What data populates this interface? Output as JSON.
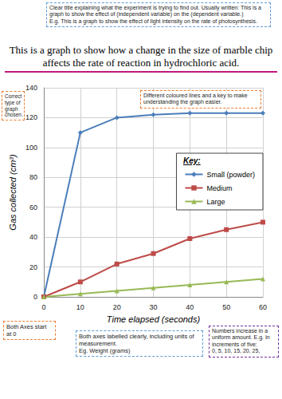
{
  "chart_data": {
    "type": "line",
    "title": "This is a graph to show how a change in the size of marble chip affects the rate of reaction in hydrochloric acid.",
    "x_label": "Time elapsed (seconds)",
    "y_label": "Gas collected (cm³)",
    "legend_title": "Key:",
    "x": [
      0,
      10,
      20,
      30,
      40,
      50,
      60
    ],
    "series": [
      {
        "name": "Small (powder)",
        "color": "#4a7ebb",
        "marker": "diamond",
        "values": [
          0,
          110,
          120,
          122,
          123,
          123,
          123
        ]
      },
      {
        "name": "Medium",
        "color": "#be4b48",
        "marker": "square",
        "values": [
          0,
          10,
          22,
          29,
          39,
          45,
          50
        ]
      },
      {
        "name": "Large",
        "color": "#98b954",
        "marker": "triangle",
        "values": [
          0,
          2,
          4,
          6,
          8,
          10,
          12
        ]
      }
    ],
    "xlim": [
      0,
      60
    ],
    "ylim": [
      0,
      140
    ],
    "xticks": [
      0,
      10,
      20,
      30,
      40,
      50,
      60
    ],
    "yticks": [
      0,
      20,
      40,
      60,
      80,
      100,
      120,
      140
    ],
    "grid": true,
    "legend": "right"
  },
  "annotations": [
    {
      "text": [
        "Clear title explaining what the experiment is trying to find out. Usually written: This is a graph to show the effect of (independent variable) on the (dependent variable.)",
        "E.g. This is a graph to show the effect of light intensity on the rate of photosynthesis."
      ]
    },
    {
      "text": [
        "Correct type of graph chosen."
      ]
    },
    {
      "text": [
        "Different coloured lines and a key to make understanding the graph easier."
      ]
    },
    {
      "text": [
        "Numbers increase in a uniform amount. E.g. In increments of five:",
        "0, 5, 10, 15, 20, 25,"
      ]
    },
    {
      "text": [
        "Both Axes start at 0"
      ]
    },
    {
      "text": [
        "Both axes labelled clearly, including units of measurement.",
        "Eg. Weight (grams)"
      ]
    }
  ]
}
